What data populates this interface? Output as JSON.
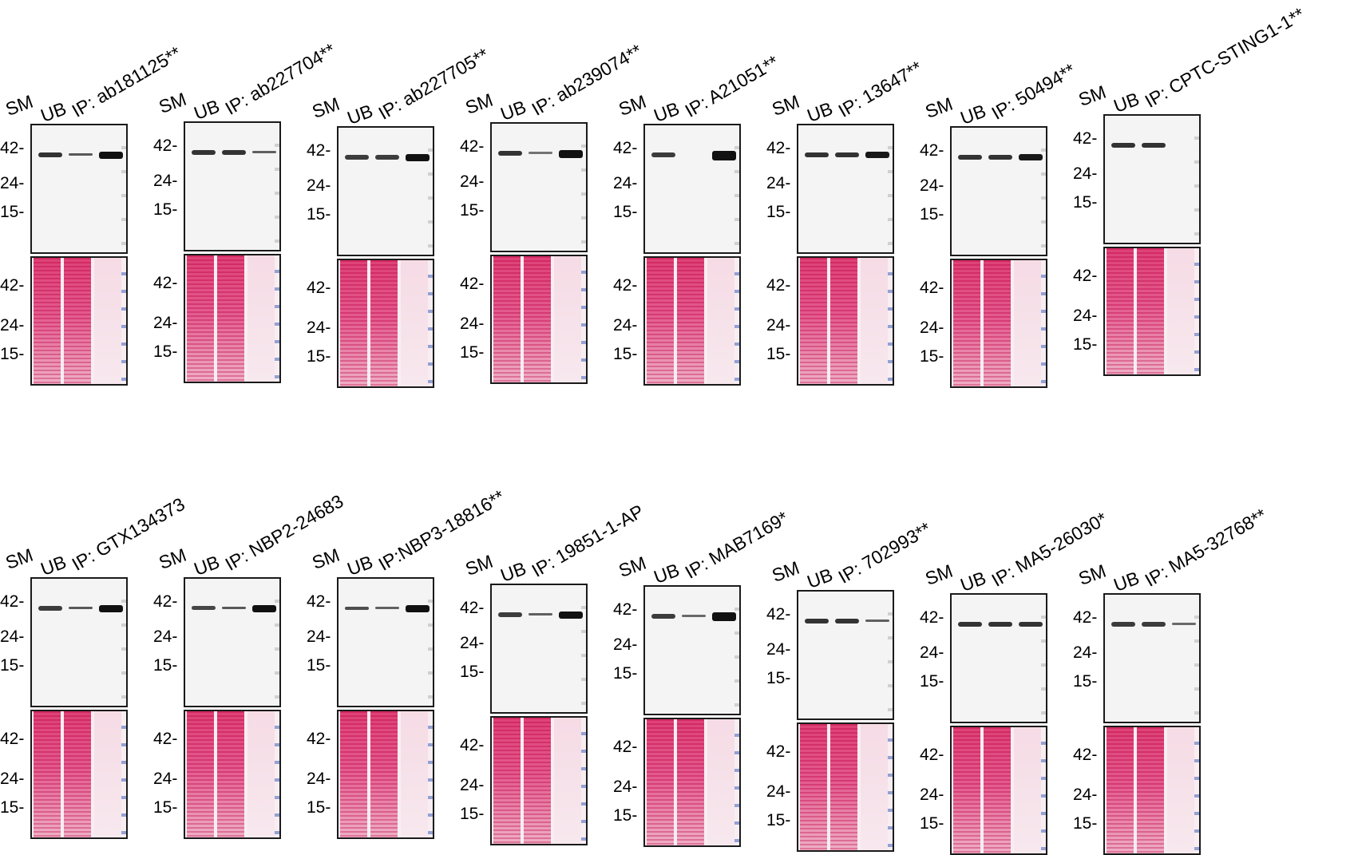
{
  "lane_labels": {
    "sm": "SM",
    "ub": "UB"
  },
  "panels": [
    {
      "ip": "IP: ab181125**",
      "wb_ticks": [
        "42-",
        "24-",
        "15-"
      ],
      "p_ticks": [
        "42-",
        "24-",
        "15-"
      ]
    },
    {
      "ip": "IP: ab227704**",
      "wb_ticks": [
        "42-",
        "24-",
        "15-"
      ],
      "p_ticks": [
        "42-",
        "24-",
        "15-"
      ]
    },
    {
      "ip": "IP: ab227705**",
      "wb_ticks": [
        "42-",
        "24-",
        "15-"
      ],
      "p_ticks": [
        "42-",
        "24-",
        "15-"
      ]
    },
    {
      "ip": "IP: ab239074**",
      "wb_ticks": [
        "42-",
        "24-",
        "15-"
      ],
      "p_ticks": [
        "42-",
        "24-",
        "15-"
      ]
    },
    {
      "ip": "IP: A21051**",
      "wb_ticks": [
        "42-",
        "24-",
        "15-"
      ],
      "p_ticks": [
        "42-",
        "24-",
        "15-"
      ]
    },
    {
      "ip": "IP: 13647**",
      "wb_ticks": [
        "42-",
        "24-",
        "15-"
      ],
      "p_ticks": [
        "42-",
        "24-",
        "15-"
      ]
    },
    {
      "ip": "IP: 50494**",
      "wb_ticks": [
        "42-",
        "24-",
        "15-"
      ],
      "p_ticks": [
        "42-",
        "24-",
        "15-"
      ]
    },
    {
      "ip": "IP: CPTC-STING1-1**",
      "wb_ticks": [
        "42-",
        "24-",
        "15-"
      ],
      "p_ticks": [
        "42-",
        "24-",
        "15-"
      ]
    },
    {
      "ip": "IP: GTX134373",
      "wb_ticks": [
        "42-",
        "24-",
        "15-"
      ],
      "p_ticks": [
        "42-",
        "24-",
        "15-"
      ]
    },
    {
      "ip": "IP: NBP2-24683",
      "wb_ticks": [
        "42-",
        "24-",
        "15-"
      ],
      "p_ticks": [
        "42-",
        "24-",
        "15-"
      ]
    },
    {
      "ip": "IP:NBP3-18816**",
      "wb_ticks": [
        "42-",
        "24-",
        "15-"
      ],
      "p_ticks": [
        "42-",
        "24-",
        "15-"
      ]
    },
    {
      "ip": "IP: 19851-1-AP",
      "wb_ticks": [
        "42-",
        "24-",
        "15-"
      ],
      "p_ticks": [
        "42-",
        "24-",
        "15-"
      ]
    },
    {
      "ip": "IP: MAB7169*",
      "wb_ticks": [
        "42-",
        "24-",
        "15-"
      ],
      "p_ticks": [
        "42-",
        "24-",
        "15-"
      ]
    },
    {
      "ip": "IP: 702993**",
      "wb_ticks": [
        "42-",
        "24-",
        "15-"
      ],
      "p_ticks": [
        "42-",
        "24-",
        "15-"
      ]
    },
    {
      "ip": "IP: MA5-26030*",
      "wb_ticks": [
        "42-",
        "24-",
        "15-"
      ],
      "p_ticks": [
        "42-",
        "24-",
        "15-"
      ]
    },
    {
      "ip": "IP: MA5-32768**",
      "wb_ticks": [
        "42-",
        "24-",
        "15-"
      ],
      "p_ticks": [
        "42-",
        "24-",
        "15-"
      ]
    }
  ]
}
